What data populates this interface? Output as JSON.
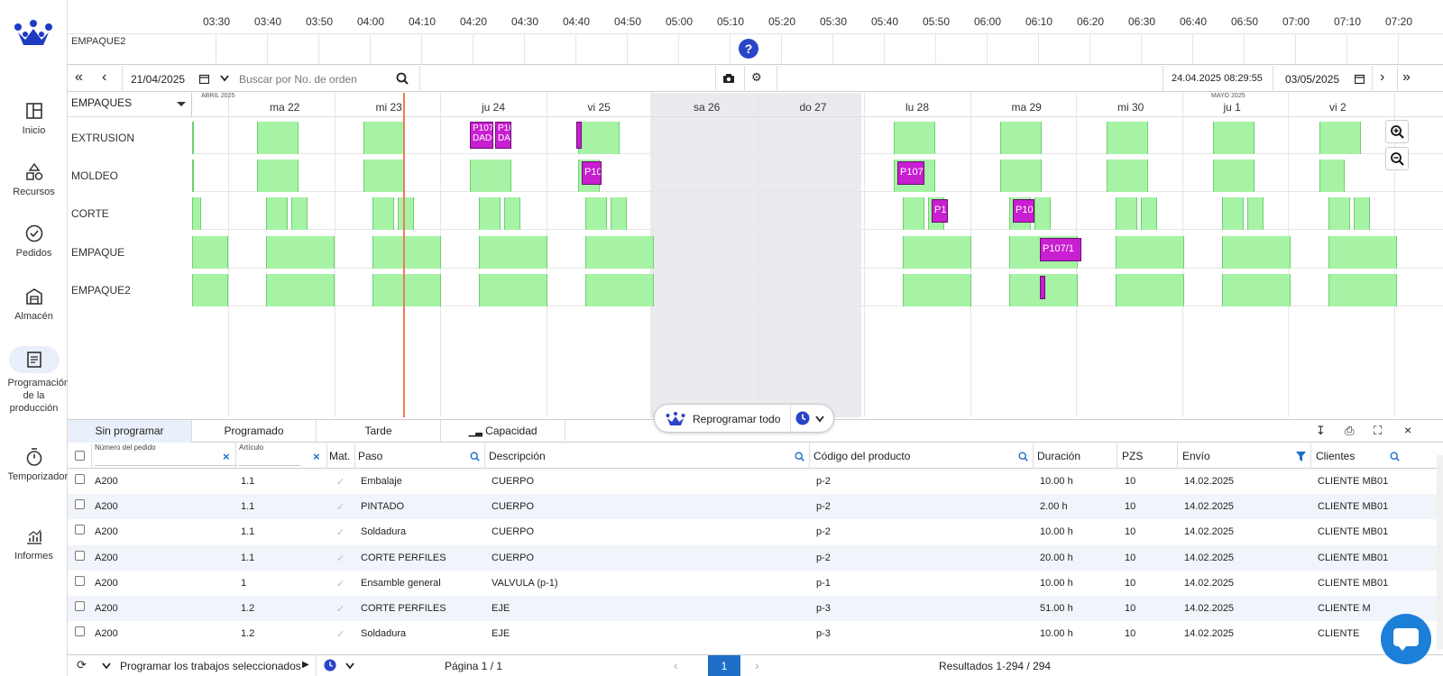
{
  "sidebar": {
    "items": [
      {
        "label": "Inicio",
        "icon": "dashboard-icon"
      },
      {
        "label": "Recursos",
        "icon": "shapes-icon"
      },
      {
        "label": "Pedidos",
        "icon": "check-circle-icon"
      },
      {
        "label": "Almacén",
        "icon": "warehouse-icon"
      },
      {
        "label": "Programación de la producción",
        "icon": "schedule-icon"
      },
      {
        "label": "Temporizador",
        "icon": "stopwatch-icon"
      },
      {
        "label": "Informes",
        "icon": "chart-icon"
      }
    ]
  },
  "timeline": {
    "hours": [
      "03:30",
      "03:40",
      "03:50",
      "04:00",
      "04:10",
      "04:20",
      "04:30",
      "04:40",
      "04:50",
      "05:00",
      "05:10",
      "05:20",
      "05:30",
      "05:40",
      "05:50",
      "06:00",
      "06:10",
      "06:20",
      "06:30",
      "06:40",
      "06:50",
      "07:00",
      "07:10",
      "07:20"
    ],
    "resource": "EMPAQUE2"
  },
  "toolbar": {
    "date_from": "21/04/2025",
    "search_placeholder": "Buscar por No. de orden",
    "current_time": "24.04.2025 08:29:55",
    "date_to": "03/05/2025"
  },
  "gantt": {
    "group": "EMPAQUES",
    "month_left": "ABRIL 2025",
    "month_right": "MAYO 2025",
    "days": [
      "ma 22",
      "mi 23",
      "ju 24",
      "vi 25",
      "sa 26",
      "do 27",
      "lu 28",
      "ma 29",
      "mi 30",
      "ju 1",
      "vi 2"
    ],
    "resources": [
      "EXTRUSION",
      "MOLDEO",
      "CORTE",
      "EMPAQUE",
      "EMPAQUE2"
    ],
    "tasks": [
      {
        "label": "P107 DADO"
      },
      {
        "label": "P10 DA"
      },
      {
        "label": "P10"
      },
      {
        "label": "P107"
      },
      {
        "label": "P1"
      },
      {
        "label": "P10"
      },
      {
        "label": "P107/1"
      }
    ]
  },
  "reprogram": {
    "label": "Reprogramar todo"
  },
  "tabs": [
    "Sin programar",
    "Programado",
    "Tarde",
    "Capacidad"
  ],
  "table": {
    "small_headers": {
      "order": "Número del pedido",
      "article": "Artículo"
    },
    "headers": {
      "mat": "Mat.",
      "paso": "Paso",
      "desc": "Descripción",
      "code": "Código del producto",
      "dur": "Duración",
      "pzs": "PZS",
      "envio": "Envío",
      "clientes": "Clientes"
    },
    "rows": [
      {
        "order": "A200",
        "article": "1.1",
        "paso": "Embalaje",
        "desc": "CUERPO",
        "code": "p-2",
        "dur": "10.00 h",
        "pzs": "10",
        "envio": "14.02.2025",
        "cliente": "CLIENTE MB01"
      },
      {
        "order": "A200",
        "article": "1.1",
        "paso": "PINTADO",
        "desc": "CUERPO",
        "code": "p-2",
        "dur": "2.00 h",
        "pzs": "10",
        "envio": "14.02.2025",
        "cliente": "CLIENTE MB01"
      },
      {
        "order": "A200",
        "article": "1.1",
        "paso": "Soldadura",
        "desc": "CUERPO",
        "code": "p-2",
        "dur": "10.00 h",
        "pzs": "10",
        "envio": "14.02.2025",
        "cliente": "CLIENTE MB01"
      },
      {
        "order": "A200",
        "article": "1.1",
        "paso": "CORTE PERFILES",
        "desc": "CUERPO",
        "code": "p-2",
        "dur": "20.00 h",
        "pzs": "10",
        "envio": "14.02.2025",
        "cliente": "CLIENTE MB01"
      },
      {
        "order": "A200",
        "article": "1",
        "paso": "Ensamble general",
        "desc": "VALVULA (p-1)",
        "code": "p-1",
        "dur": "10.00 h",
        "pzs": "10",
        "envio": "14.02.2025",
        "cliente": "CLIENTE MB01"
      },
      {
        "order": "A200",
        "article": "1.2",
        "paso": "CORTE PERFILES",
        "desc": "EJE",
        "code": "p-3",
        "dur": "51.00 h",
        "pzs": "10",
        "envio": "14.02.2025",
        "cliente": "CLIENTE M"
      },
      {
        "order": "A200",
        "article": "1.2",
        "paso": "Soldadura",
        "desc": "EJE",
        "code": "p-3",
        "dur": "10.00 h",
        "pzs": "10",
        "envio": "14.02.2025",
        "cliente": "CLIENTE"
      }
    ]
  },
  "footer": {
    "action": "Programar los trabajos seleccionados",
    "page": "Página 1 / 1",
    "page_num": "1",
    "results": "Resultados 1-294 / 294"
  }
}
